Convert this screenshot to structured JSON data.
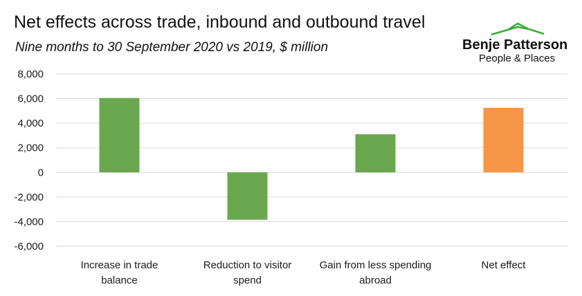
{
  "header": {
    "title": "Net effects across trade, inbound and outbound travel",
    "subtitle": "Nine months to 30 September 2020 vs 2019, $ million"
  },
  "brand": {
    "name": "Benje Patterson",
    "tagline": "People & Places",
    "logo_icon": "mountain-outline-icon",
    "logo_color": "#3aaa35"
  },
  "chart_data": {
    "type": "bar",
    "title": "Net effects across trade, inbound and outbound travel",
    "subtitle": "Nine months to 30 September 2020 vs 2019, $ million",
    "categories": [
      [
        "Increase in trade",
        "balance"
      ],
      [
        "Reduction to visitor",
        "spend"
      ],
      [
        "Gain from less spending",
        "abroad"
      ],
      [
        "Net effect"
      ]
    ],
    "values": [
      6050,
      -3850,
      3100,
      5250
    ],
    "colors": [
      "#6aa84f",
      "#6aa84f",
      "#6aa84f",
      "#f79646"
    ],
    "ylim": [
      -6000,
      8000
    ],
    "yticks": [
      8000,
      6000,
      4000,
      2000,
      0,
      -2000,
      -4000,
      -6000
    ],
    "ytick_labels": [
      "8,000",
      "6,000",
      "4,000",
      "2,000",
      "0",
      "-2,000",
      "-4,000",
      "-6,000"
    ],
    "grid": true,
    "legend": "none",
    "xlabel": "",
    "ylabel": ""
  }
}
